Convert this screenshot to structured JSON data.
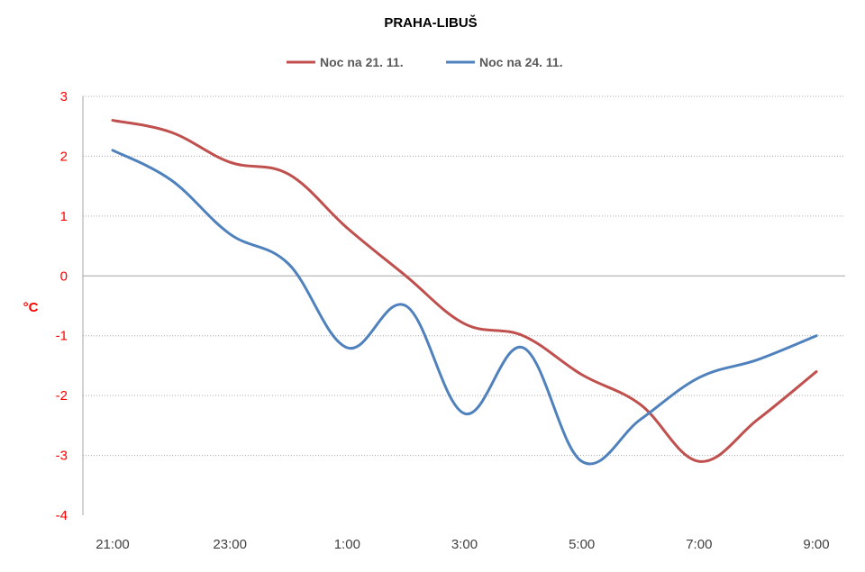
{
  "chart_data": {
    "type": "line",
    "title": "PRAHA-LIBUŠ",
    "ylabel": "°C",
    "xlabel": "",
    "ylim": [
      -4,
      3
    ],
    "yticks": [
      3,
      2,
      1,
      0,
      -1,
      -2,
      -3,
      -4
    ],
    "ytick_labels": [
      "3",
      "2",
      "1",
      "0",
      "-1",
      "-2",
      "-3",
      "-4"
    ],
    "x": [
      "21:00",
      "22:00",
      "23:00",
      "0:00",
      "1:00",
      "2:00",
      "3:00",
      "4:00",
      "5:00",
      "6:00",
      "7:00",
      "8:00",
      "9:00"
    ],
    "xtick_labels": [
      "21:00",
      "",
      "23:00",
      "",
      "1:00",
      "",
      "3:00",
      "",
      "5:00",
      "",
      "7:00",
      "",
      "9:00"
    ],
    "grid": "horizontal dotted",
    "legend_position": "top",
    "series": [
      {
        "name": "Noc na 21. 11.",
        "color": "#c0504d",
        "values": [
          2.6,
          2.4,
          1.9,
          1.7,
          0.8,
          0.0,
          -0.8,
          -1.0,
          -1.65,
          -2.15,
          -3.1,
          -2.4,
          -1.6
        ]
      },
      {
        "name": "Noc na 24. 11.",
        "color": "#4f81bd",
        "values": [
          2.1,
          1.6,
          0.7,
          0.2,
          -1.2,
          -0.5,
          -2.3,
          -1.2,
          -3.1,
          -2.4,
          -1.7,
          -1.4,
          -1.0
        ]
      }
    ],
    "colors": {
      "ytick": "#ff0000",
      "ylabel": "#ff0000",
      "xtick": "#404040",
      "grid": "#a6a6a6",
      "zero_line": "#a6a6a6"
    }
  }
}
